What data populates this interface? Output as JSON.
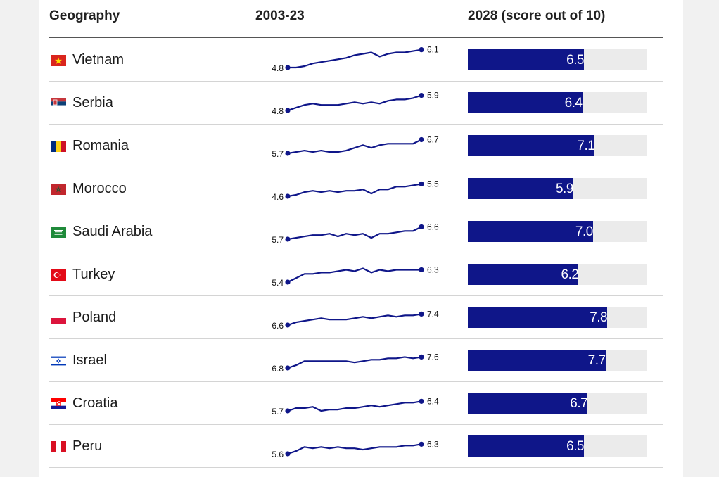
{
  "headers": {
    "geography": "Geography",
    "trend": "2003-23",
    "score": "2028 (score out of 10)"
  },
  "chart_data": {
    "type": "table",
    "title": "",
    "score_max": 10,
    "columns": [
      "Geography",
      "2003-23",
      "2028 (score out of 10)"
    ],
    "rows": [
      {
        "country": "Vietnam",
        "flag": "vietnam-flag",
        "start_label": "4.8",
        "end_label": "6.1",
        "score": 6.5,
        "score_label": "6.5",
        "trend": [
          4.8,
          4.8,
          4.9,
          5.1,
          5.2,
          5.3,
          5.4,
          5.5,
          5.7,
          5.8,
          5.9,
          5.6,
          5.8,
          5.9,
          5.9,
          6.0,
          6.1
        ]
      },
      {
        "country": "Serbia",
        "flag": "serbia-flag",
        "start_label": "4.8",
        "end_label": "5.9",
        "score": 6.4,
        "score_label": "6.4",
        "trend": [
          4.8,
          5.0,
          5.2,
          5.3,
          5.2,
          5.2,
          5.2,
          5.3,
          5.4,
          5.3,
          5.4,
          5.3,
          5.5,
          5.6,
          5.6,
          5.7,
          5.9
        ]
      },
      {
        "country": "Romania",
        "flag": "romania-flag",
        "start_label": "5.7",
        "end_label": "6.7",
        "score": 7.1,
        "score_label": "7.1",
        "trend": [
          5.7,
          5.8,
          5.9,
          5.8,
          5.9,
          5.8,
          5.8,
          5.9,
          6.1,
          6.3,
          6.1,
          6.3,
          6.4,
          6.4,
          6.4,
          6.4,
          6.7
        ]
      },
      {
        "country": "Morocco",
        "flag": "morocco-flag",
        "start_label": "4.6",
        "end_label": "5.5",
        "score": 5.9,
        "score_label": "5.9",
        "trend": [
          4.6,
          4.7,
          4.9,
          5.0,
          4.9,
          5.0,
          4.9,
          5.0,
          5.0,
          5.1,
          4.8,
          5.1,
          5.1,
          5.3,
          5.3,
          5.4,
          5.5
        ]
      },
      {
        "country": "Saudi Arabia",
        "flag": "saudi-arabia-flag",
        "start_label": "5.7",
        "end_label": "6.6",
        "score": 7.0,
        "score_label": "7.0",
        "trend": [
          5.7,
          5.8,
          5.9,
          6.0,
          6.0,
          6.1,
          5.9,
          6.1,
          6.0,
          6.1,
          5.8,
          6.1,
          6.1,
          6.2,
          6.3,
          6.3,
          6.6
        ]
      },
      {
        "country": "Turkey",
        "flag": "turkey-flag",
        "start_label": "5.4",
        "end_label": "6.3",
        "score": 6.2,
        "score_label": "6.2",
        "trend": [
          5.4,
          5.7,
          6.0,
          6.0,
          6.1,
          6.1,
          6.2,
          6.3,
          6.2,
          6.4,
          6.1,
          6.3,
          6.2,
          6.3,
          6.3,
          6.3,
          6.3
        ]
      },
      {
        "country": "Poland",
        "flag": "poland-flag",
        "start_label": "6.6",
        "end_label": "7.4",
        "score": 7.8,
        "score_label": "7.8",
        "trend": [
          6.6,
          6.8,
          6.9,
          7.0,
          7.1,
          7.0,
          7.0,
          7.0,
          7.1,
          7.2,
          7.1,
          7.2,
          7.3,
          7.2,
          7.3,
          7.3,
          7.4
        ]
      },
      {
        "country": "Israel",
        "flag": "israel-flag",
        "start_label": "6.8",
        "end_label": "7.6",
        "score": 7.7,
        "score_label": "7.7",
        "trend": [
          6.8,
          7.0,
          7.3,
          7.3,
          7.3,
          7.3,
          7.3,
          7.3,
          7.2,
          7.3,
          7.4,
          7.4,
          7.5,
          7.5,
          7.6,
          7.5,
          7.6
        ]
      },
      {
        "country": "Croatia",
        "flag": "croatia-flag",
        "start_label": "5.7",
        "end_label": "6.4",
        "score": 6.7,
        "score_label": "6.7",
        "trend": [
          5.7,
          5.9,
          5.9,
          6.0,
          5.7,
          5.8,
          5.8,
          5.9,
          5.9,
          6.0,
          6.1,
          6.0,
          6.1,
          6.2,
          6.3,
          6.3,
          6.4
        ]
      },
      {
        "country": "Peru",
        "flag": "peru-flag",
        "start_label": "5.6",
        "end_label": "6.3",
        "score": 6.5,
        "score_label": "6.5",
        "trend": [
          5.6,
          5.8,
          6.1,
          6.0,
          6.1,
          6.0,
          6.1,
          6.0,
          6.0,
          5.9,
          6.0,
          6.1,
          6.1,
          6.1,
          6.2,
          6.2,
          6.3
        ]
      }
    ]
  },
  "colors": {
    "bar": "#0f1689",
    "track": "#ebebeb",
    "line": "#0f1689"
  }
}
